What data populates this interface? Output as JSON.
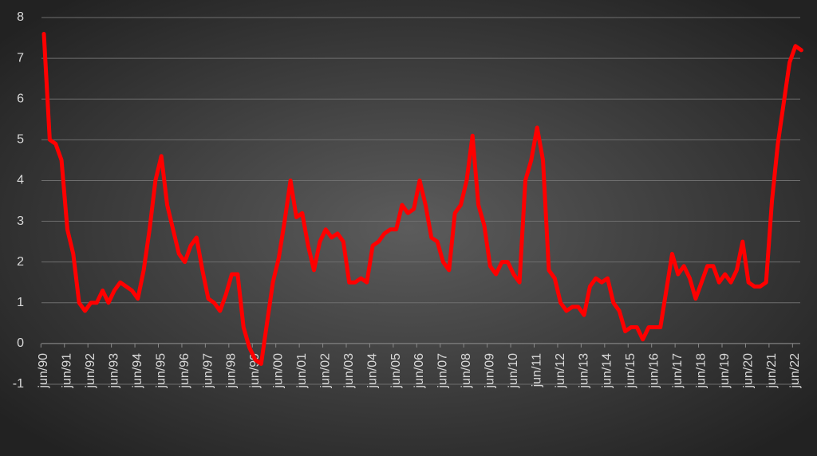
{
  "chart_data": {
    "type": "line",
    "categories": [
      "jun/90",
      null,
      null,
      null,
      "jun/91",
      null,
      null,
      null,
      "jun/92",
      null,
      null,
      null,
      "jun/93",
      null,
      null,
      null,
      "jun/94",
      null,
      null,
      null,
      "jun/95",
      null,
      null,
      null,
      "jun/96",
      null,
      null,
      null,
      "jun/97",
      null,
      null,
      null,
      "jun/98",
      null,
      null,
      null,
      "jun/99",
      null,
      null,
      null,
      "jun/00",
      null,
      null,
      null,
      "jun/01",
      null,
      null,
      null,
      "jun/02",
      null,
      null,
      null,
      "jun/03",
      null,
      null,
      null,
      "jun/04",
      null,
      null,
      null,
      "jun/05",
      null,
      null,
      null,
      "jun/06",
      null,
      null,
      null,
      "jun/07",
      null,
      null,
      null,
      "jun/08",
      null,
      null,
      null,
      "jun/09",
      null,
      null,
      null,
      "jun/10",
      null,
      null,
      null,
      "jun/11",
      null,
      null,
      null,
      "jun/12",
      null,
      null,
      null,
      "jun/13",
      null,
      null,
      null,
      "jun/14",
      null,
      null,
      null,
      "jun/15",
      null,
      null,
      null,
      "jun/16",
      null,
      null,
      null,
      "jun/17",
      null,
      null,
      null,
      "jun/18",
      null,
      null,
      null,
      "jun/19",
      null,
      null,
      null,
      "jun/20",
      null,
      null,
      null,
      "jun/21",
      null,
      null,
      null,
      "jun/22",
      null
    ],
    "values": [
      7.6,
      5.0,
      4.9,
      4.5,
      2.8,
      2.2,
      1.0,
      0.8,
      1.0,
      1.0,
      1.3,
      1.0,
      1.3,
      1.5,
      1.4,
      1.3,
      1.1,
      1.8,
      2.8,
      4.0,
      4.6,
      3.4,
      2.8,
      2.2,
      2.0,
      2.4,
      2.6,
      1.8,
      1.1,
      1.0,
      0.8,
      1.2,
      1.7,
      1.7,
      0.4,
      -0.1,
      -0.4,
      -0.5,
      0.5,
      1.5,
      2.1,
      3.0,
      4.0,
      3.1,
      3.2,
      2.4,
      1.8,
      2.5,
      2.8,
      2.6,
      2.7,
      2.5,
      1.5,
      1.5,
      1.6,
      1.5,
      2.4,
      2.5,
      2.7,
      2.8,
      2.8,
      3.4,
      3.2,
      3.3,
      4.0,
      3.4,
      2.6,
      2.5,
      2.0,
      1.8,
      3.2,
      3.4,
      4.0,
      5.1,
      3.4,
      2.9,
      1.9,
      1.7,
      2.0,
      2.0,
      1.7,
      1.5,
      4.0,
      4.5,
      5.3,
      4.5,
      1.8,
      1.6,
      1.0,
      0.8,
      0.9,
      0.9,
      0.7,
      1.4,
      1.6,
      1.5,
      1.6,
      1.0,
      0.8,
      0.3,
      0.4,
      0.4,
      0.1,
      0.4,
      0.4,
      0.4,
      1.3,
      2.2,
      1.7,
      1.9,
      1.6,
      1.1,
      1.5,
      1.9,
      1.9,
      1.5,
      1.7,
      1.5,
      1.8,
      2.5,
      1.5,
      1.4,
      1.4,
      1.5,
      3.5,
      4.9,
      5.9,
      6.9,
      7.3,
      7.2
    ],
    "color": "#ff0000",
    "ylim": [
      -1,
      8
    ],
    "yticks": [
      -1,
      0,
      1,
      2,
      3,
      4,
      5,
      6,
      7,
      8
    ],
    "grid": true
  }
}
